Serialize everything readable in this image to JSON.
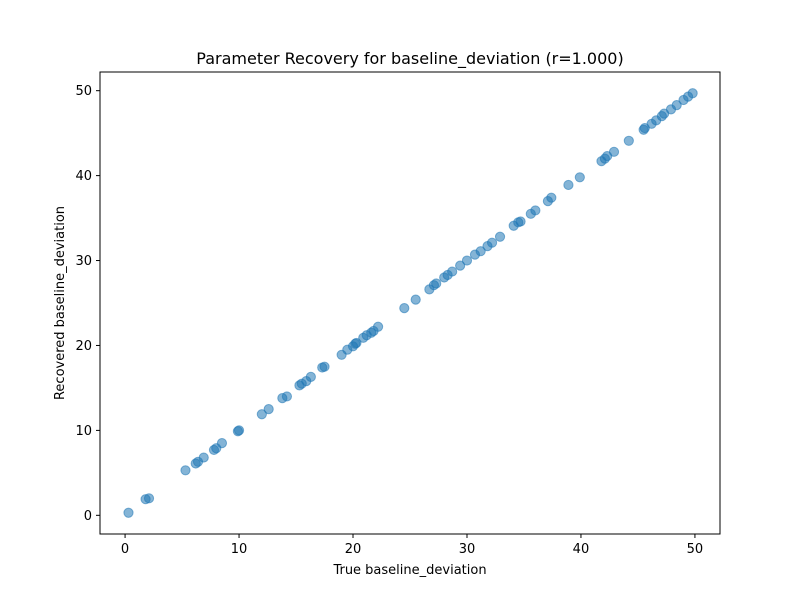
{
  "chart_data": {
    "type": "scatter",
    "title": "Parameter Recovery for baseline_deviation (r=1.000)",
    "xlabel": "True baseline_deviation",
    "ylabel": "Recovered baseline_deviation",
    "xlim": [
      -2.2,
      52.2
    ],
    "ylim": [
      -2.2,
      52.2
    ],
    "xticks": [
      0,
      10,
      20,
      30,
      40,
      50
    ],
    "yticks": [
      0,
      10,
      20,
      30,
      40,
      50
    ],
    "grid": false,
    "point_color": "#1f77b4",
    "point_opacity": 0.55,
    "points": [
      [
        0.3,
        0.3
      ],
      [
        1.8,
        1.9
      ],
      [
        2.1,
        2.0
      ],
      [
        5.3,
        5.3
      ],
      [
        6.2,
        6.1
      ],
      [
        6.4,
        6.3
      ],
      [
        6.9,
        6.8
      ],
      [
        7.8,
        7.7
      ],
      [
        8.0,
        7.9
      ],
      [
        8.5,
        8.5
      ],
      [
        9.9,
        9.9
      ],
      [
        10.0,
        10.0
      ],
      [
        12.0,
        11.9
      ],
      [
        12.6,
        12.5
      ],
      [
        13.8,
        13.8
      ],
      [
        14.2,
        14.0
      ],
      [
        15.3,
        15.3
      ],
      [
        15.5,
        15.5
      ],
      [
        15.9,
        15.8
      ],
      [
        16.3,
        16.3
      ],
      [
        17.3,
        17.4
      ],
      [
        17.5,
        17.5
      ],
      [
        19.0,
        18.9
      ],
      [
        19.5,
        19.5
      ],
      [
        20.0,
        19.9
      ],
      [
        20.2,
        20.2
      ],
      [
        20.3,
        20.3
      ],
      [
        20.9,
        20.9
      ],
      [
        21.2,
        21.2
      ],
      [
        21.6,
        21.5
      ],
      [
        21.8,
        21.7
      ],
      [
        22.2,
        22.2
      ],
      [
        24.5,
        24.4
      ],
      [
        25.5,
        25.4
      ],
      [
        26.7,
        26.6
      ],
      [
        27.1,
        27.1
      ],
      [
        27.3,
        27.3
      ],
      [
        28.0,
        28.0
      ],
      [
        28.3,
        28.3
      ],
      [
        28.7,
        28.7
      ],
      [
        29.4,
        29.4
      ],
      [
        30.0,
        30.0
      ],
      [
        30.7,
        30.7
      ],
      [
        31.2,
        31.1
      ],
      [
        31.8,
        31.7
      ],
      [
        32.2,
        32.1
      ],
      [
        32.9,
        32.8
      ],
      [
        34.1,
        34.1
      ],
      [
        34.5,
        34.5
      ],
      [
        34.7,
        34.6
      ],
      [
        35.6,
        35.5
      ],
      [
        36.0,
        35.9
      ],
      [
        37.1,
        37.0
      ],
      [
        37.4,
        37.4
      ],
      [
        38.9,
        38.9
      ],
      [
        39.9,
        39.8
      ],
      [
        41.8,
        41.7
      ],
      [
        42.1,
        42.0
      ],
      [
        42.3,
        42.3
      ],
      [
        42.9,
        42.8
      ],
      [
        44.2,
        44.1
      ],
      [
        45.5,
        45.4
      ],
      [
        45.6,
        45.6
      ],
      [
        46.2,
        46.1
      ],
      [
        46.6,
        46.5
      ],
      [
        47.1,
        47.0
      ],
      [
        47.3,
        47.3
      ],
      [
        47.9,
        47.8
      ],
      [
        48.4,
        48.3
      ],
      [
        49.0,
        48.9
      ],
      [
        49.4,
        49.3
      ],
      [
        49.8,
        49.7
      ]
    ]
  }
}
